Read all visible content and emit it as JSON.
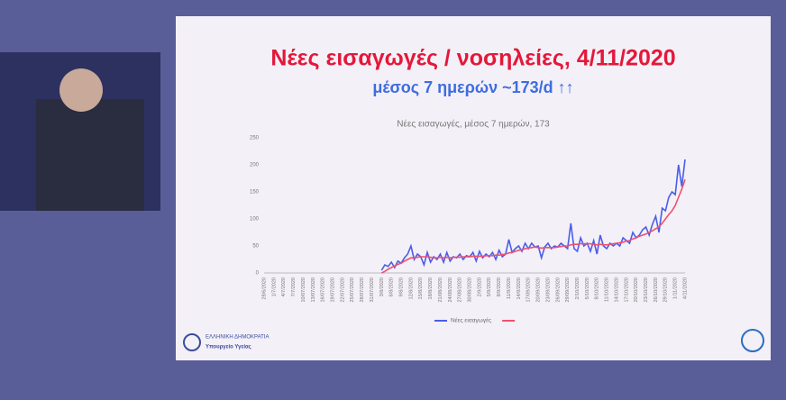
{
  "slide": {
    "title": "Νέες εισαγωγές / νοσηλείες, 4/11/2020",
    "subtitle": "μέσος 7 ημερών ~173/d ↑↑",
    "footer_line1": "ΕΛΛΗΝΙΚΗ ΔΗΜΟΚΡΑΤΙΑ",
    "footer_line2": "Υπουργείο Υγείας"
  },
  "chart_data": {
    "type": "line",
    "title": "Νέες εισαγωγές, μέσος 7 ημερών, 173",
    "grid": false,
    "categories": [
      "28/6/2020",
      null,
      null,
      "1/7/2020",
      null,
      null,
      "4/7/2020",
      null,
      null,
      "7/7/2020",
      null,
      null,
      "10/07/2020",
      null,
      null,
      "13/07/2020",
      null,
      null,
      "16/07/2020",
      null,
      null,
      "19/07/2020",
      null,
      null,
      "22/07/2020",
      null,
      null,
      "25/07/2020",
      null,
      null,
      "28/07/2020",
      null,
      null,
      "31/07/2020",
      null,
      null,
      "3/8/2020",
      null,
      null,
      "6/8/2020",
      null,
      null,
      "9/8/2020",
      null,
      null,
      "12/8/2020",
      null,
      null,
      "15/8/2020",
      null,
      null,
      "18/8/2020",
      null,
      null,
      "21/08/2020",
      null,
      null,
      "24/08/2020",
      null,
      null,
      "27/08/2020",
      null,
      null,
      "30/08/2020",
      null,
      null,
      "2/9/2020",
      null,
      null,
      "5/9/2020",
      null,
      null,
      "8/9/2020",
      null,
      null,
      "11/9/2020",
      null,
      null,
      "14/9/2020",
      null,
      null,
      "17/09/2020",
      null,
      null,
      "20/09/2020",
      null,
      null,
      "23/09/2020",
      null,
      null,
      "26/09/2020",
      null,
      null,
      "29/09/2020",
      null,
      null,
      "2/10/2020",
      null,
      null,
      "5/10/2020",
      null,
      null,
      "8/10/2020",
      null,
      null,
      "11/10/2020",
      null,
      null,
      "14/10/2020",
      null,
      null,
      "17/10/2020",
      null,
      null,
      "20/10/2020",
      null,
      null,
      "23/10/2020",
      null,
      null,
      "26/10/2020",
      null,
      null,
      "29/10/2020",
      null,
      null,
      "1/11/2020",
      null,
      null,
      "4/11/2020"
    ],
    "series": [
      {
        "name": "Νέες εισαγωγές",
        "color": "#4a5ee8",
        "values": [
          null,
          null,
          null,
          null,
          null,
          null,
          null,
          null,
          null,
          null,
          null,
          null,
          null,
          null,
          null,
          null,
          null,
          null,
          null,
          null,
          null,
          null,
          null,
          null,
          null,
          null,
          null,
          null,
          null,
          null,
          null,
          null,
          null,
          null,
          null,
          null,
          5,
          15,
          12,
          20,
          10,
          22,
          18,
          28,
          35,
          50,
          25,
          35,
          30,
          15,
          38,
          20,
          30,
          25,
          35,
          20,
          38,
          22,
          30,
          28,
          35,
          25,
          32,
          30,
          38,
          22,
          40,
          28,
          35,
          30,
          38,
          25,
          42,
          30,
          35,
          62,
          38,
          45,
          50,
          40,
          55,
          45,
          55,
          48,
          50,
          28,
          48,
          55,
          45,
          50,
          48,
          55,
          50,
          45,
          92,
          45,
          40,
          65,
          50,
          55,
          40,
          60,
          35,
          70,
          50,
          45,
          55,
          50,
          55,
          50,
          65,
          60,
          55,
          75,
          65,
          70,
          80,
          85,
          70,
          90,
          105,
          75,
          120,
          115,
          140,
          150,
          145,
          200,
          160,
          210
        ]
      },
      {
        "color": "#f0506e",
        "values": [
          null,
          null,
          null,
          null,
          null,
          null,
          null,
          null,
          null,
          null,
          null,
          null,
          null,
          null,
          null,
          null,
          null,
          null,
          null,
          null,
          null,
          null,
          null,
          null,
          null,
          null,
          null,
          null,
          null,
          null,
          null,
          null,
          null,
          null,
          null,
          null,
          0,
          3,
          7,
          10,
          13,
          16,
          18,
          22,
          25,
          28,
          28,
          29,
          30,
          30,
          30,
          29,
          28,
          28,
          29,
          28,
          29,
          28,
          29,
          29,
          29,
          30,
          30,
          30,
          31,
          31,
          31,
          31,
          32,
          32,
          32,
          33,
          33,
          34,
          35,
          37,
          38,
          40,
          42,
          43,
          45,
          46,
          47,
          48,
          47,
          46,
          47,
          47,
          47,
          47,
          48,
          49,
          50,
          50,
          52,
          53,
          53,
          54,
          54,
          54,
          54,
          53,
          52,
          53,
          52,
          52,
          53,
          54,
          55,
          56,
          57,
          59,
          60,
          63,
          65,
          68,
          70,
          72,
          75,
          78,
          82,
          85,
          92,
          100,
          108,
          115,
          125,
          140,
          155,
          173
        ]
      }
    ],
    "ylim": [
      0,
      250
    ],
    "yticks": [
      0,
      50,
      100,
      150,
      200,
      250
    ]
  }
}
